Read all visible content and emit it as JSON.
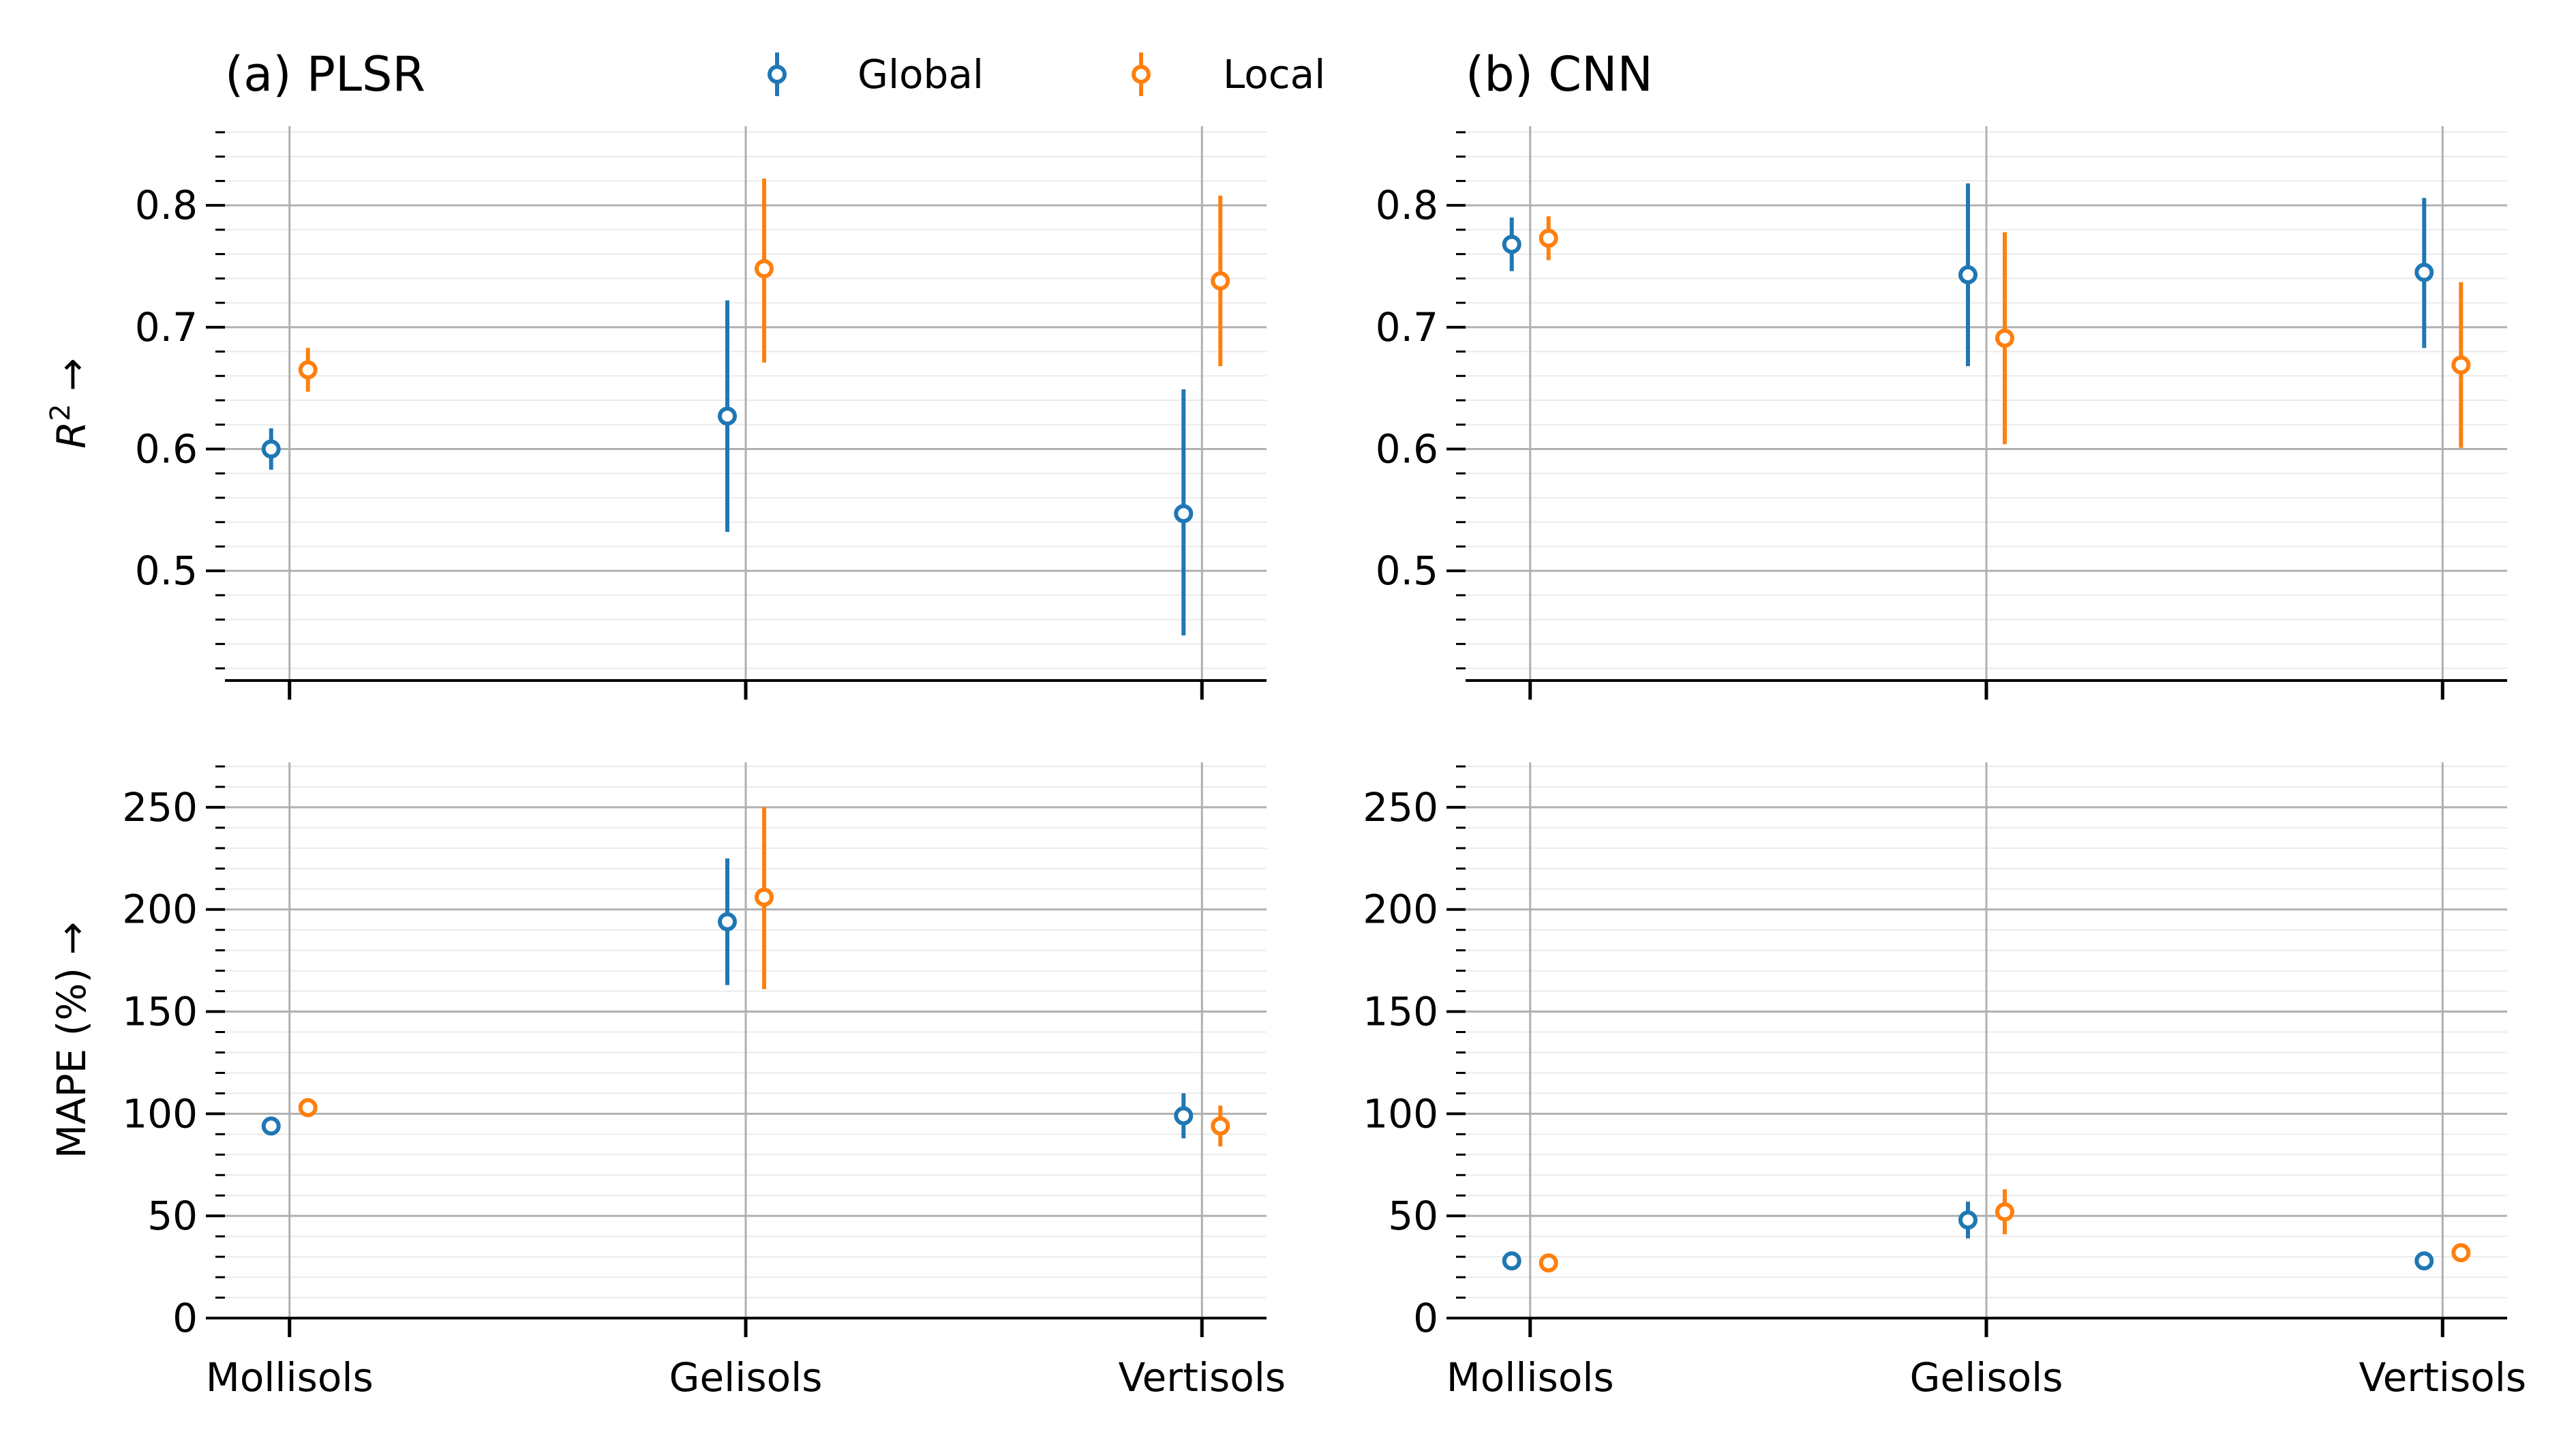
{
  "legend": {
    "position": "top-center",
    "items": [
      {
        "name": "Global",
        "color": "#1f77b4"
      },
      {
        "name": "Local",
        "color": "#ff7f0e"
      }
    ]
  },
  "chart_data": [
    {
      "id": "plsr-r2",
      "type": "scatter",
      "panel_title": "(a) PLSR",
      "ylabel": "$R^2$ →",
      "ylim": [
        0.41,
        0.865
      ],
      "yticks": [
        "0.5",
        "0.6",
        "0.7",
        "0.8"
      ],
      "ytick_values": [
        0.5,
        0.6,
        0.7,
        0.8
      ],
      "categories": [
        "Mollisols",
        "Gelisols",
        "Vertisols"
      ],
      "show_xtick_labels": false,
      "series": [
        {
          "name": "Global",
          "color": "#1f77b4",
          "values": [
            0.6,
            0.627,
            0.547
          ],
          "err_low": [
            0.583,
            0.532,
            0.447
          ],
          "err_high": [
            0.617,
            0.722,
            0.649
          ]
        },
        {
          "name": "Local",
          "color": "#ff7f0e",
          "values": [
            0.665,
            0.748,
            0.738
          ],
          "err_low": [
            0.647,
            0.671,
            0.668
          ],
          "err_high": [
            0.683,
            0.822,
            0.808
          ]
        }
      ]
    },
    {
      "id": "cnn-r2",
      "type": "scatter",
      "panel_title": "(b) CNN",
      "ylabel": "",
      "ylim": [
        0.41,
        0.865
      ],
      "yticks": [
        "0.5",
        "0.6",
        "0.7",
        "0.8"
      ],
      "ytick_values": [
        0.5,
        0.6,
        0.7,
        0.8
      ],
      "categories": [
        "Mollisols",
        "Gelisols",
        "Vertisols"
      ],
      "show_xtick_labels": false,
      "series": [
        {
          "name": "Global",
          "color": "#1f77b4",
          "values": [
            0.768,
            0.743,
            0.745
          ],
          "err_low": [
            0.746,
            0.668,
            0.683
          ],
          "err_high": [
            0.79,
            0.818,
            0.806
          ]
        },
        {
          "name": "Local",
          "color": "#ff7f0e",
          "values": [
            0.773,
            0.691,
            0.669
          ],
          "err_low": [
            0.755,
            0.604,
            0.601
          ],
          "err_high": [
            0.791,
            0.778,
            0.737
          ]
        }
      ]
    },
    {
      "id": "plsr-mape",
      "type": "scatter",
      "panel_title": "",
      "ylabel": "MAPE (%) →",
      "ylim": [
        0,
        272
      ],
      "yticks": [
        "0",
        "50",
        "100",
        "150",
        "200",
        "250"
      ],
      "ytick_values": [
        0,
        50,
        100,
        150,
        200,
        250
      ],
      "categories": [
        "Mollisols",
        "Gelisols",
        "Vertisols"
      ],
      "show_xtick_labels": true,
      "series": [
        {
          "name": "Global",
          "color": "#1f77b4",
          "values": [
            94,
            194,
            99
          ],
          "err_low": [
            90,
            163,
            88
          ],
          "err_high": [
            98,
            225,
            110
          ]
        },
        {
          "name": "Local",
          "color": "#ff7f0e",
          "values": [
            103,
            206,
            94
          ],
          "err_low": [
            99,
            161,
            84
          ],
          "err_high": [
            107,
            250,
            104
          ]
        }
      ]
    },
    {
      "id": "cnn-mape",
      "type": "scatter",
      "panel_title": "",
      "ylabel": "",
      "ylim": [
        0,
        272
      ],
      "yticks": [
        "0",
        "50",
        "100",
        "150",
        "200",
        "250"
      ],
      "ytick_values": [
        0,
        50,
        100,
        150,
        200,
        250
      ],
      "categories": [
        "Mollisols",
        "Gelisols",
        "Vertisols"
      ],
      "show_xtick_labels": true,
      "series": [
        {
          "name": "Global",
          "color": "#1f77b4",
          "values": [
            28,
            48,
            28
          ],
          "err_low": [
            25,
            39,
            25
          ],
          "err_high": [
            31,
            57,
            31
          ]
        },
        {
          "name": "Local",
          "color": "#ff7f0e",
          "values": [
            27,
            52,
            32
          ],
          "err_low": [
            24,
            41,
            29
          ],
          "err_high": [
            30,
            63,
            35
          ]
        }
      ]
    }
  ]
}
